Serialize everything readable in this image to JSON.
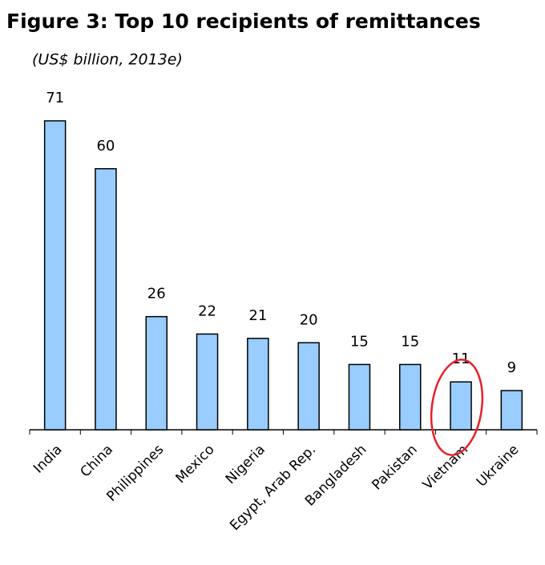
{
  "chart_data": {
    "type": "bar",
    "title": "Figure 3: Top 10 recipients of remittances",
    "subtitle": "(US$ billion, 2013e)",
    "categories": [
      "India",
      "China",
      "Philippines",
      "Mexico",
      "Nigeria",
      "Egypt, Arab Rep.",
      "Bangladesh",
      "Pakistan",
      "Vietnam",
      "Ukraine"
    ],
    "values": [
      71,
      60,
      26,
      22,
      21,
      20,
      15,
      15,
      11,
      9
    ],
    "color": "#99ccff"
  }
}
